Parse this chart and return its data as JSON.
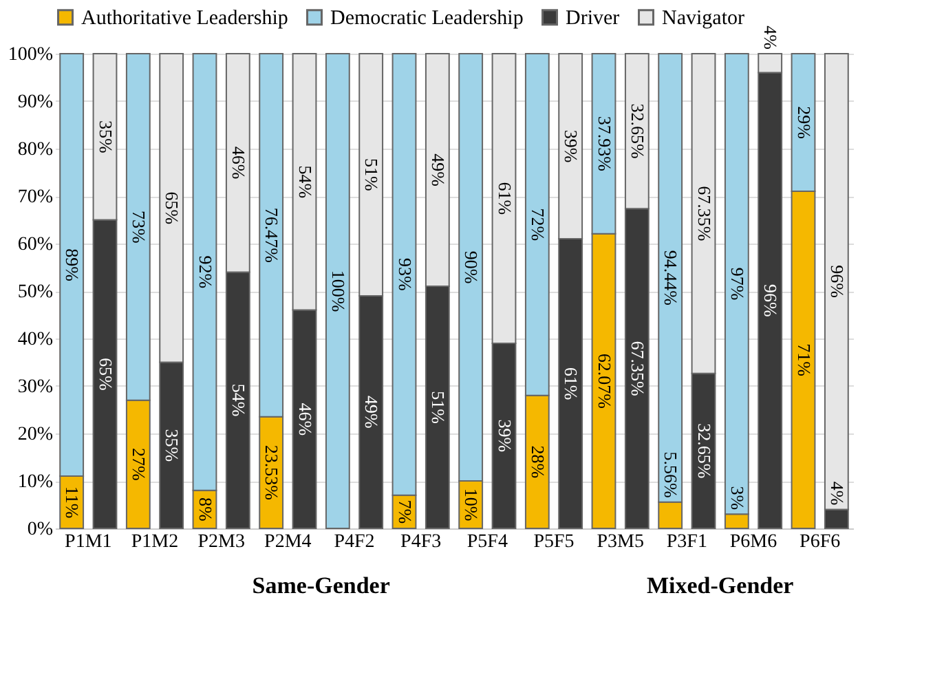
{
  "chart_data": {
    "type": "bar",
    "stacked": true,
    "categories": [
      "P1M1",
      null,
      "P1M2",
      null,
      "P2M3",
      null,
      "P2M4",
      null,
      "P4F2",
      null,
      "P4F3",
      null,
      "P5F4",
      null,
      "P5F5",
      null,
      "P3M5",
      null,
      "P3F1",
      null,
      "P6M6",
      null,
      "P6F6",
      null
    ],
    "series": [
      {
        "name": "Authoritative Leadership",
        "color": "#f5b800",
        "values": [
          11,
          null,
          27,
          null,
          8,
          null,
          23.53,
          null,
          0,
          null,
          7,
          null,
          10,
          null,
          28,
          null,
          62.07,
          null,
          5.56,
          null,
          3,
          null,
          71,
          null
        ],
        "value_labels": [
          "11%",
          null,
          "27%",
          null,
          "8%",
          null,
          "23.53%",
          null,
          null,
          null,
          "7%",
          null,
          "10%",
          null,
          "28%",
          null,
          "62.07%",
          null,
          "5.56%",
          null,
          "3%",
          null,
          "71%",
          null
        ]
      },
      {
        "name": "Democratic Leadership",
        "color": "#9fd3e8",
        "values": [
          89,
          null,
          73,
          null,
          92,
          null,
          76.47,
          null,
          100,
          null,
          93,
          null,
          90,
          null,
          72,
          null,
          37.93,
          null,
          94.44,
          null,
          97,
          null,
          29,
          null
        ],
        "value_labels": [
          "89%",
          null,
          "73%",
          null,
          "92%",
          null,
          "76.47%",
          null,
          "100%",
          null,
          "93%",
          null,
          "90%",
          null,
          "72%",
          null,
          "37.93%",
          null,
          "94.44%",
          null,
          "97%",
          null,
          "29%",
          null
        ]
      },
      {
        "name": "Driver",
        "color": "#3a3a3a",
        "values": [
          null,
          65,
          null,
          35,
          null,
          54,
          null,
          46,
          null,
          49,
          null,
          51,
          null,
          39,
          null,
          61,
          null,
          67.35,
          null,
          32.65,
          null,
          96,
          null,
          4
        ],
        "value_labels": [
          null,
          "65%",
          null,
          "35%",
          null,
          "54%",
          null,
          "46%",
          null,
          "49%",
          null,
          "51%",
          null,
          "39%",
          null,
          "61%",
          null,
          "67.35%",
          null,
          "32.65%",
          null,
          "96%",
          null,
          "4%"
        ]
      },
      {
        "name": "Navigator",
        "color": "#e6e6e6",
        "values": [
          null,
          35,
          null,
          65,
          null,
          46,
          null,
          54,
          null,
          51,
          null,
          49,
          null,
          61,
          null,
          39,
          null,
          32.65,
          null,
          67.35,
          null,
          4,
          null,
          96
        ],
        "value_labels": [
          null,
          "35%",
          null,
          "65%",
          null,
          "46%",
          null,
          "54%",
          null,
          "51%",
          null,
          "49%",
          null,
          "61%",
          null,
          "39%",
          null,
          "32.65%",
          null,
          "67.35%",
          null,
          "4%",
          null,
          "96%"
        ]
      }
    ],
    "ylim": [
      0,
      100
    ],
    "yticks": [
      {
        "value": 0,
        "label": "0%"
      },
      {
        "value": 10,
        "label": "10%"
      },
      {
        "value": 20,
        "label": "20%"
      },
      {
        "value": 30,
        "label": "30%"
      },
      {
        "value": 40,
        "label": "40%"
      },
      {
        "value": 50,
        "label": "50%"
      },
      {
        "value": 60,
        "label": "60%"
      },
      {
        "value": 70,
        "label": "70%"
      },
      {
        "value": 80,
        "label": "80%"
      },
      {
        "value": 90,
        "label": "90%"
      },
      {
        "value": 100,
        "label": "100%"
      }
    ],
    "grid": "y",
    "legend": "top",
    "annotations": [
      "Same-Gender",
      "Mixed-Gender"
    ]
  }
}
